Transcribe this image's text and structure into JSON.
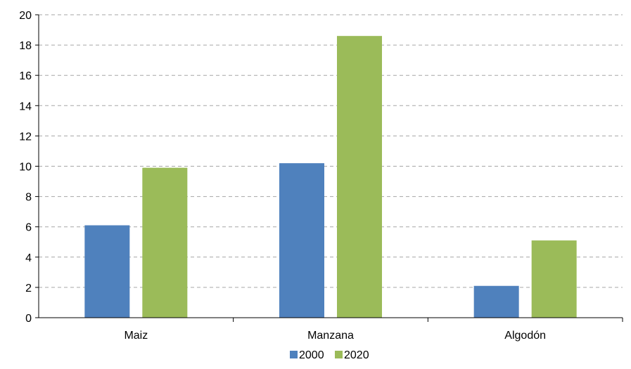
{
  "chart_data": {
    "type": "bar",
    "title": "",
    "xlabel": "",
    "ylabel": "",
    "categories": [
      "Maiz",
      "Manzana",
      "Algodón"
    ],
    "series": [
      {
        "name": "2000",
        "color": "#4f81bd",
        "values": [
          6.1,
          10.2,
          2.1
        ]
      },
      {
        "name": "2020",
        "color": "#9bbb59",
        "values": [
          9.9,
          18.6,
          5.1
        ]
      }
    ],
    "ylim": [
      0,
      20
    ],
    "yticks": [
      0,
      2,
      4,
      6,
      8,
      10,
      12,
      14,
      16,
      18,
      20
    ],
    "grid": true,
    "legend": "bottom-center"
  }
}
